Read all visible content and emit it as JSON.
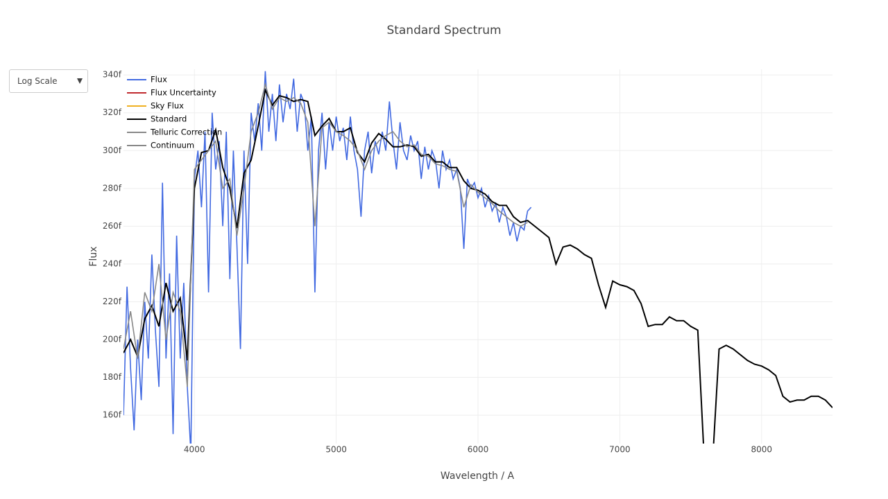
{
  "menu": {
    "label": "Log Scale"
  },
  "chart_data": {
    "type": "line",
    "title": "Standard Spectrum",
    "x_label": "Wavelength / A",
    "y_label": "Flux",
    "xlim": [
      3500,
      8500
    ],
    "xticks": [
      4000,
      5000,
      6000,
      7000,
      8000
    ],
    "ylim": [
      145,
      343
    ],
    "yticks": [
      {
        "value": 160,
        "label": "160f"
      },
      {
        "value": 180,
        "label": "180f"
      },
      {
        "value": 200,
        "label": "200f"
      },
      {
        "value": 220,
        "label": "220f"
      },
      {
        "value": 240,
        "label": "240f"
      },
      {
        "value": 260,
        "label": "260f"
      },
      {
        "value": 280,
        "label": "280f"
      },
      {
        "value": 300,
        "label": "300f"
      },
      {
        "value": 320,
        "label": "320f"
      },
      {
        "value": 340,
        "label": "340f"
      }
    ],
    "grid": true,
    "legend": "top-left",
    "series": [
      {
        "name": "Flux",
        "color": "#4169e1",
        "x": [
          3500,
          3525,
          3550,
          3575,
          3600,
          3625,
          3650,
          3675,
          3700,
          3725,
          3750,
          3775,
          3800,
          3825,
          3850,
          3875,
          3900,
          3925,
          3950,
          3975,
          4000,
          4025,
          4050,
          4075,
          4100,
          4125,
          4150,
          4175,
          4200,
          4225,
          4250,
          4275,
          4300,
          4325,
          4350,
          4375,
          4400,
          4425,
          4450,
          4475,
          4500,
          4525,
          4550,
          4575,
          4600,
          4625,
          4650,
          4675,
          4700,
          4725,
          4750,
          4775,
          4800,
          4825,
          4850,
          4875,
          4900,
          4925,
          4950,
          4975,
          5000,
          5025,
          5050,
          5075,
          5100,
          5125,
          5150,
          5175,
          5200,
          5225,
          5250,
          5275,
          5300,
          5325,
          5350,
          5375,
          5400,
          5425,
          5450,
          5475,
          5500,
          5525,
          5550,
          5575,
          5600,
          5625,
          5650,
          5675,
          5700,
          5725,
          5750,
          5775,
          5800,
          5825,
          5850,
          5875,
          5900,
          5925,
          5950,
          5975,
          6000,
          6025,
          6050,
          6075,
          6100,
          6125,
          6150,
          6175,
          6200,
          6225,
          6250,
          6275,
          6300,
          6325,
          6350,
          6375
        ],
        "values": [
          160,
          228,
          185,
          152,
          200,
          168,
          220,
          190,
          245,
          205,
          175,
          283,
          190,
          235,
          150,
          255,
          190,
          230,
          175,
          140,
          285,
          300,
          270,
          310,
          225,
          320,
          290,
          305,
          260,
          310,
          232,
          300,
          250,
          195,
          300,
          240,
          320,
          305,
          325,
          300,
          342,
          310,
          330,
          305,
          335,
          315,
          330,
          322,
          338,
          310,
          330,
          325,
          300,
          318,
          225,
          300,
          320,
          290,
          315,
          300,
          318,
          305,
          312,
          295,
          318,
          300,
          290,
          265,
          300,
          310,
          288,
          305,
          298,
          310,
          300,
          326,
          305,
          290,
          315,
          300,
          295,
          308,
          300,
          305,
          285,
          302,
          290,
          300,
          295,
          280,
          300,
          290,
          295,
          285,
          290,
          280,
          248,
          285,
          280,
          283,
          275,
          280,
          270,
          276,
          268,
          272,
          262,
          270,
          265,
          255,
          262,
          252,
          260,
          258,
          268,
          270
        ]
      },
      {
        "name": "Flux Uncertainty",
        "color": "#c0282d",
        "x": [],
        "values": []
      },
      {
        "name": "Sky Flux",
        "color": "#f0b020",
        "x": [],
        "values": []
      },
      {
        "name": "Standard",
        "color": "#000000",
        "x": [
          3500,
          3550,
          3600,
          3650,
          3700,
          3750,
          3800,
          3850,
          3900,
          3950,
          4000,
          4050,
          4100,
          4150,
          4200,
          4250,
          4300,
          4350,
          4400,
          4450,
          4500,
          4550,
          4600,
          4650,
          4700,
          4750,
          4800,
          4850,
          4900,
          4950,
          5000,
          5050,
          5100,
          5150,
          5200,
          5250,
          5300,
          5350,
          5400,
          5450,
          5500,
          5550,
          5600,
          5650,
          5700,
          5750,
          5800,
          5850,
          5900,
          5950,
          6000,
          6050,
          6100,
          6150,
          6200,
          6250,
          6300,
          6350,
          6400,
          6450,
          6500,
          6550,
          6600,
          6650,
          6700,
          6750,
          6800,
          6850,
          6900,
          6950,
          7000,
          7050,
          7100,
          7150,
          7200,
          7250,
          7300,
          7350,
          7400,
          7450,
          7500,
          7550,
          7600,
          7650,
          7700,
          7750,
          7800,
          7850,
          7900,
          7950,
          8000,
          8050,
          8100,
          8150,
          8200,
          8250,
          8300,
          8350,
          8400,
          8450,
          8500
        ],
        "values": [
          193,
          200,
          191,
          211,
          218,
          207,
          230,
          215,
          222,
          189,
          280,
          299,
          300,
          311,
          291,
          280,
          259,
          288,
          295,
          313,
          332,
          324,
          329,
          328,
          326,
          327,
          326,
          308,
          313,
          317,
          310,
          310,
          312,
          299,
          294,
          304,
          309,
          306,
          302,
          302,
          303,
          302,
          297,
          298,
          294,
          294,
          291,
          291,
          284,
          280,
          279,
          277,
          273,
          271,
          271,
          265,
          262,
          263,
          260,
          257,
          254,
          240,
          249,
          250,
          248,
          245,
          243,
          229,
          217,
          231,
          229,
          228,
          226,
          219,
          207,
          208,
          208,
          212,
          210,
          210,
          207,
          205,
          130,
          130,
          195,
          197,
          195,
          192,
          189,
          187,
          186,
          184,
          181,
          170,
          167,
          168,
          168,
          170,
          170,
          168,
          164
        ]
      },
      {
        "name": "Telluric Correction",
        "color": "#888888",
        "x": [
          3500,
          3550,
          3600,
          3650,
          3700,
          3750,
          3800,
          3850,
          3900,
          3950,
          4000,
          4050,
          4100,
          4150,
          4200,
          4250,
          4300,
          4350,
          4400,
          4450,
          4500,
          4550,
          4600,
          4650,
          4700,
          4750,
          4800,
          4850,
          4900,
          4950,
          5000,
          5050,
          5100,
          5150,
          5200,
          5250,
          5300,
          5350,
          5400,
          5450,
          5500,
          5550,
          5600,
          5650,
          5700,
          5750,
          5800,
          5850,
          5900,
          5950,
          6000,
          6050,
          6100,
          6150,
          6200,
          6250,
          6300,
          6350
        ],
        "values": [
          195,
          215,
          190,
          225,
          215,
          240,
          200,
          225,
          215,
          175,
          290,
          295,
          300,
          305,
          280,
          285,
          255,
          280,
          310,
          320,
          335,
          322,
          328,
          326,
          328,
          325,
          315,
          260,
          312,
          315,
          310,
          308,
          305,
          300,
          290,
          300,
          305,
          308,
          310,
          305,
          302,
          303,
          298,
          297,
          293,
          292,
          290,
          289,
          270,
          282,
          278,
          275,
          272,
          268,
          265,
          262,
          260,
          262
        ]
      },
      {
        "name": "Continuum",
        "color": "#888888",
        "x": [],
        "values": []
      }
    ]
  }
}
